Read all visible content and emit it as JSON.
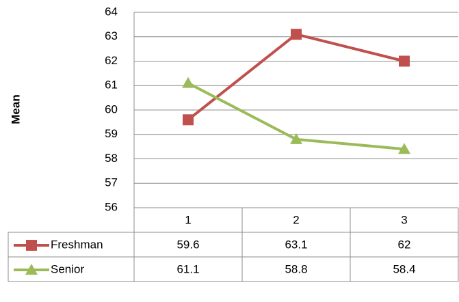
{
  "chart_data": {
    "type": "line",
    "y_label": "Mean",
    "categories": [
      "1",
      "2",
      "3"
    ],
    "series": [
      {
        "name": "Freshman",
        "color": "#c0504d",
        "marker": "square",
        "values": [
          59.6,
          63.1,
          62
        ]
      },
      {
        "name": "Senior",
        "color": "#9bbb59",
        "marker": "triangle",
        "values": [
          61.1,
          58.8,
          58.4
        ]
      }
    ],
    "ylim": [
      56,
      64
    ],
    "yticks": [
      56,
      57,
      58,
      59,
      60,
      61,
      62,
      63,
      64
    ],
    "grid": true,
    "data_table": true
  }
}
